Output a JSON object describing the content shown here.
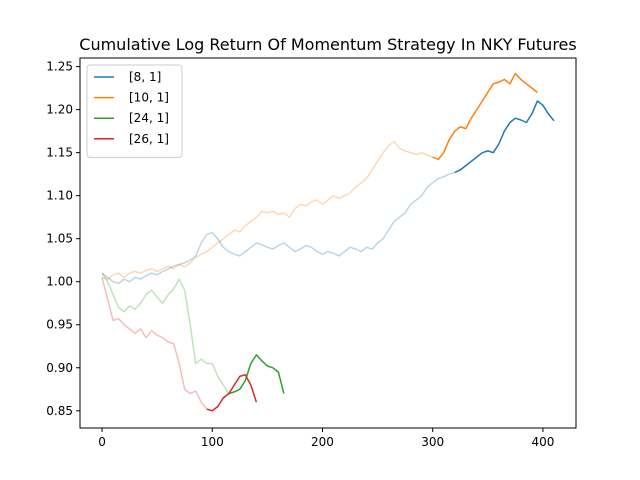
{
  "chart_data": {
    "type": "line",
    "title": "Cumulative Log Return Of Momentum Strategy In NKY Futures",
    "xlabel": "",
    "ylabel": "",
    "xlim": [
      -20,
      430
    ],
    "ylim": [
      0.83,
      1.26
    ],
    "x_ticks": [
      0,
      100,
      200,
      300,
      400
    ],
    "y_ticks": [
      0.85,
      0.9,
      0.95,
      1.0,
      1.05,
      1.1,
      1.15,
      1.2,
      1.25
    ],
    "grid": false,
    "legend_position": "top-left",
    "series": [
      {
        "name": "[8, 1]",
        "color": "#1f77b4",
        "highlight_from_x": 320,
        "points": [
          [
            0,
            1.01
          ],
          [
            5,
            1.005
          ],
          [
            10,
            1.0
          ],
          [
            15,
            0.998
          ],
          [
            20,
            1.003
          ],
          [
            25,
            1.0
          ],
          [
            30,
            1.005
          ],
          [
            35,
            1.003
          ],
          [
            40,
            1.007
          ],
          [
            45,
            1.01
          ],
          [
            50,
            1.008
          ],
          [
            55,
            1.012
          ],
          [
            60,
            1.015
          ],
          [
            65,
            1.018
          ],
          [
            70,
            1.02
          ],
          [
            75,
            1.022
          ],
          [
            80,
            1.025
          ],
          [
            85,
            1.03
          ],
          [
            90,
            1.045
          ],
          [
            95,
            1.055
          ],
          [
            100,
            1.057
          ],
          [
            105,
            1.05
          ],
          [
            110,
            1.04
          ],
          [
            115,
            1.035
          ],
          [
            120,
            1.032
          ],
          [
            125,
            1.03
          ],
          [
            130,
            1.035
          ],
          [
            135,
            1.04
          ],
          [
            140,
            1.045
          ],
          [
            145,
            1.043
          ],
          [
            150,
            1.04
          ],
          [
            155,
            1.038
          ],
          [
            160,
            1.042
          ],
          [
            165,
            1.045
          ],
          [
            170,
            1.04
          ],
          [
            175,
            1.035
          ],
          [
            180,
            1.038
          ],
          [
            185,
            1.042
          ],
          [
            190,
            1.04
          ],
          [
            195,
            1.035
          ],
          [
            200,
            1.032
          ],
          [
            205,
            1.035
          ],
          [
            210,
            1.033
          ],
          [
            215,
            1.03
          ],
          [
            220,
            1.035
          ],
          [
            225,
            1.04
          ],
          [
            230,
            1.038
          ],
          [
            235,
            1.035
          ],
          [
            240,
            1.04
          ],
          [
            245,
            1.038
          ],
          [
            250,
            1.045
          ],
          [
            255,
            1.05
          ],
          [
            260,
            1.06
          ],
          [
            265,
            1.07
          ],
          [
            270,
            1.075
          ],
          [
            275,
            1.08
          ],
          [
            280,
            1.09
          ],
          [
            285,
            1.095
          ],
          [
            290,
            1.1
          ],
          [
            295,
            1.11
          ],
          [
            300,
            1.115
          ],
          [
            305,
            1.12
          ],
          [
            310,
            1.122
          ],
          [
            315,
            1.125
          ],
          [
            320,
            1.127
          ],
          [
            325,
            1.13
          ],
          [
            330,
            1.135
          ],
          [
            335,
            1.14
          ],
          [
            340,
            1.145
          ],
          [
            345,
            1.15
          ],
          [
            350,
            1.152
          ],
          [
            355,
            1.15
          ],
          [
            360,
            1.16
          ],
          [
            365,
            1.175
          ],
          [
            370,
            1.185
          ],
          [
            375,
            1.19
          ],
          [
            380,
            1.188
          ],
          [
            385,
            1.185
          ],
          [
            390,
            1.195
          ],
          [
            395,
            1.21
          ],
          [
            400,
            1.205
          ],
          [
            405,
            1.195
          ],
          [
            410,
            1.187
          ]
        ]
      },
      {
        "name": "[10, 1]",
        "color": "#ff7f0e",
        "highlight_from_x": 300,
        "points": [
          [
            0,
            1.005
          ],
          [
            5,
            1.003
          ],
          [
            10,
            1.008
          ],
          [
            15,
            1.01
          ],
          [
            20,
            1.005
          ],
          [
            25,
            1.01
          ],
          [
            30,
            1.012
          ],
          [
            35,
            1.01
          ],
          [
            40,
            1.013
          ],
          [
            45,
            1.015
          ],
          [
            50,
            1.012
          ],
          [
            55,
            1.015
          ],
          [
            60,
            1.018
          ],
          [
            65,
            1.015
          ],
          [
            70,
            1.02
          ],
          [
            75,
            1.017
          ],
          [
            80,
            1.022
          ],
          [
            85,
            1.028
          ],
          [
            90,
            1.032
          ],
          [
            95,
            1.035
          ],
          [
            100,
            1.04
          ],
          [
            105,
            1.045
          ],
          [
            110,
            1.05
          ],
          [
            115,
            1.055
          ],
          [
            120,
            1.06
          ],
          [
            125,
            1.058
          ],
          [
            130,
            1.065
          ],
          [
            135,
            1.07
          ],
          [
            140,
            1.075
          ],
          [
            145,
            1.082
          ],
          [
            150,
            1.08
          ],
          [
            155,
            1.082
          ],
          [
            160,
            1.078
          ],
          [
            165,
            1.08
          ],
          [
            170,
            1.075
          ],
          [
            175,
            1.085
          ],
          [
            180,
            1.09
          ],
          [
            185,
            1.088
          ],
          [
            190,
            1.093
          ],
          [
            195,
            1.095
          ],
          [
            200,
            1.09
          ],
          [
            205,
            1.095
          ],
          [
            210,
            1.1
          ],
          [
            215,
            1.097
          ],
          [
            220,
            1.1
          ],
          [
            225,
            1.103
          ],
          [
            230,
            1.11
          ],
          [
            235,
            1.115
          ],
          [
            240,
            1.12
          ],
          [
            245,
            1.13
          ],
          [
            250,
            1.14
          ],
          [
            255,
            1.15
          ],
          [
            260,
            1.158
          ],
          [
            265,
            1.163
          ],
          [
            270,
            1.155
          ],
          [
            275,
            1.152
          ],
          [
            280,
            1.15
          ],
          [
            285,
            1.148
          ],
          [
            290,
            1.15
          ],
          [
            295,
            1.147
          ],
          [
            300,
            1.145
          ],
          [
            305,
            1.142
          ],
          [
            310,
            1.15
          ],
          [
            315,
            1.165
          ],
          [
            320,
            1.175
          ],
          [
            325,
            1.18
          ],
          [
            330,
            1.178
          ],
          [
            335,
            1.19
          ],
          [
            340,
            1.2
          ],
          [
            345,
            1.21
          ],
          [
            350,
            1.22
          ],
          [
            355,
            1.23
          ],
          [
            360,
            1.232
          ],
          [
            365,
            1.235
          ],
          [
            370,
            1.23
          ],
          [
            375,
            1.242
          ],
          [
            380,
            1.235
          ],
          [
            385,
            1.23
          ],
          [
            390,
            1.225
          ],
          [
            395,
            1.22
          ]
        ]
      },
      {
        "name": "[24, 1]",
        "color": "#2ca02c",
        "highlight_from_x": 115,
        "points": [
          [
            0,
            1.01
          ],
          [
            5,
            1.0
          ],
          [
            10,
            0.985
          ],
          [
            15,
            0.97
          ],
          [
            20,
            0.965
          ],
          [
            25,
            0.972
          ],
          [
            30,
            0.968
          ],
          [
            35,
            0.975
          ],
          [
            40,
            0.985
          ],
          [
            45,
            0.99
          ],
          [
            50,
            0.982
          ],
          [
            55,
            0.975
          ],
          [
            60,
            0.985
          ],
          [
            65,
            0.992
          ],
          [
            70,
            1.003
          ],
          [
            75,
            0.99
          ],
          [
            80,
            0.95
          ],
          [
            85,
            0.905
          ],
          [
            90,
            0.91
          ],
          [
            95,
            0.905
          ],
          [
            100,
            0.905
          ],
          [
            105,
            0.89
          ],
          [
            110,
            0.88
          ],
          [
            115,
            0.87
          ],
          [
            120,
            0.872
          ],
          [
            125,
            0.875
          ],
          [
            130,
            0.885
          ],
          [
            135,
            0.905
          ],
          [
            140,
            0.915
          ],
          [
            145,
            0.908
          ],
          [
            150,
            0.902
          ],
          [
            155,
            0.9
          ],
          [
            160,
            0.895
          ],
          [
            165,
            0.87
          ]
        ]
      },
      {
        "name": "[26, 1]",
        "color": "#d62728",
        "highlight_from_x": 95,
        "points": [
          [
            0,
            1.005
          ],
          [
            5,
            0.98
          ],
          [
            10,
            0.955
          ],
          [
            15,
            0.957
          ],
          [
            20,
            0.95
          ],
          [
            25,
            0.945
          ],
          [
            30,
            0.94
          ],
          [
            35,
            0.945
          ],
          [
            40,
            0.935
          ],
          [
            45,
            0.943
          ],
          [
            50,
            0.938
          ],
          [
            55,
            0.935
          ],
          [
            60,
            0.93
          ],
          [
            65,
            0.928
          ],
          [
            70,
            0.905
          ],
          [
            75,
            0.875
          ],
          [
            80,
            0.87
          ],
          [
            85,
            0.873
          ],
          [
            90,
            0.86
          ],
          [
            95,
            0.852
          ],
          [
            100,
            0.85
          ],
          [
            105,
            0.855
          ],
          [
            110,
            0.865
          ],
          [
            115,
            0.87
          ],
          [
            120,
            0.88
          ],
          [
            125,
            0.89
          ],
          [
            130,
            0.892
          ],
          [
            135,
            0.88
          ],
          [
            140,
            0.86
          ]
        ]
      }
    ]
  }
}
